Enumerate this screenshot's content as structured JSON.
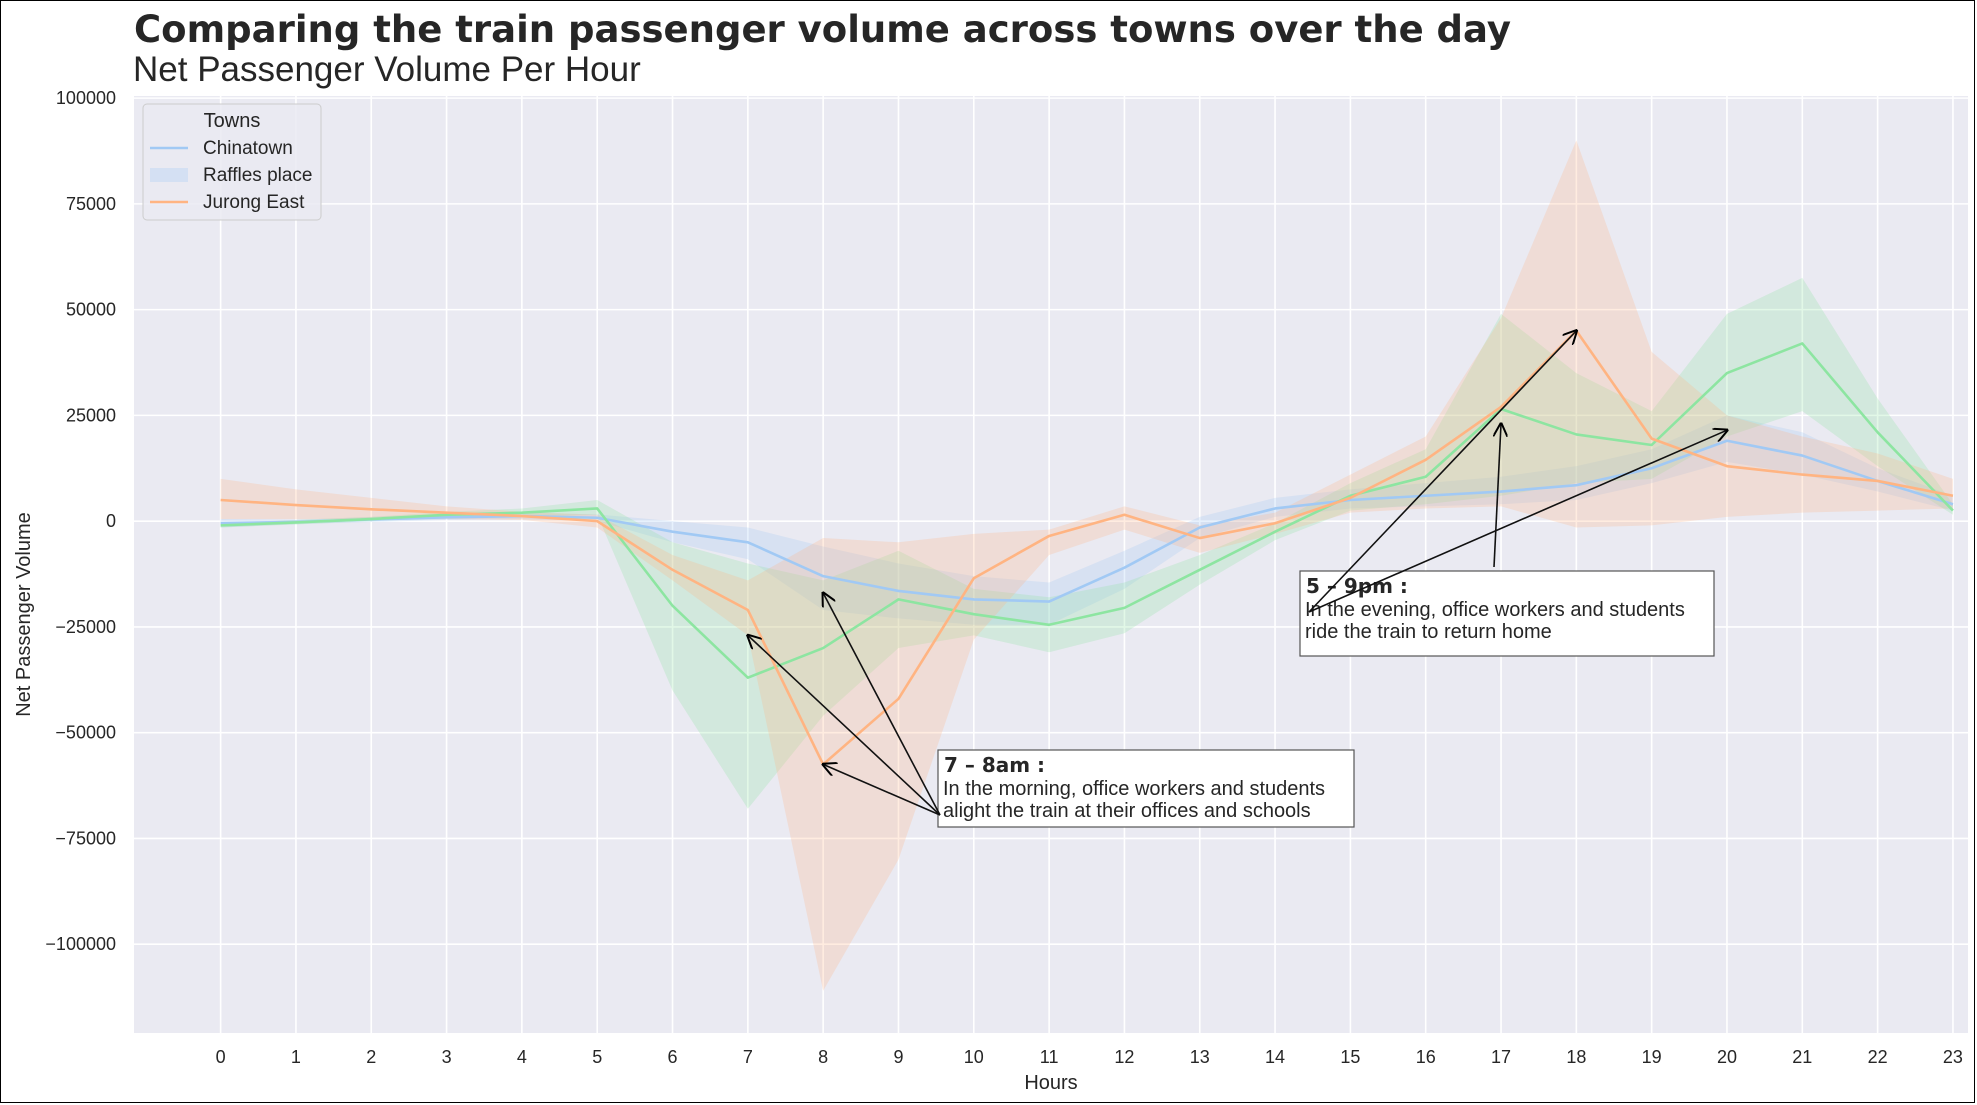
{
  "title": "Comparing the train passenger volume across towns over the day",
  "subtitle": "Net Passenger Volume Per Hour",
  "chart_data": {
    "type": "line",
    "xlabel": "Hours",
    "ylabel": "Net Passenger Volume",
    "x": [
      0,
      1,
      2,
      3,
      4,
      5,
      6,
      7,
      8,
      9,
      10,
      11,
      12,
      13,
      14,
      15,
      16,
      17,
      18,
      19,
      20,
      21,
      22,
      23
    ],
    "xlim": [
      -1.15,
      23.2
    ],
    "ylim": [
      -121000,
      100500
    ],
    "yticks": [
      100000,
      75000,
      50000,
      25000,
      0,
      -25000,
      -50000,
      -75000,
      -100000
    ],
    "ytick_labels": [
      "100000",
      "75000",
      "50000",
      "25000",
      "0",
      "−25000",
      "−50000",
      "−75000",
      "−100000"
    ],
    "grid": true,
    "legend": {
      "title": "Towns",
      "placement": "top-left",
      "entries": [
        {
          "label": "Chinatown",
          "kind": "line",
          "color": "#a1c9f4"
        },
        {
          "label": "Raffles place",
          "kind": "patch",
          "color": "#a1c9f4"
        },
        {
          "label": "Jurong East",
          "kind": "line",
          "color": "#ffb482"
        }
      ]
    },
    "series": [
      {
        "color": "#a1c9f4",
        "values": [
          -500,
          -200,
          400,
          900,
          1200,
          800,
          -2500,
          -5000,
          -13000,
          -16500,
          -18500,
          -19000,
          -11000,
          -1500,
          3000,
          5000,
          6000,
          7000,
          8500,
          12500,
          19000,
          15500,
          9500,
          4000
        ],
        "lower": [
          -1500,
          -700,
          -200,
          300,
          500,
          0,
          -5000,
          -9000,
          -21000,
          -23000,
          -24500,
          -24500,
          -16000,
          -4000,
          1000,
          3000,
          3500,
          4000,
          5000,
          9000,
          14000,
          11000,
          7000,
          2500
        ],
        "upper": [
          500,
          300,
          1000,
          1500,
          2000,
          1600,
          0,
          -1500,
          -6000,
          -10000,
          -13000,
          -14500,
          -7000,
          1000,
          5500,
          7500,
          9000,
          10500,
          13000,
          17000,
          25000,
          21000,
          12500,
          6000
        ]
      },
      {
        "color": "#8de5a1",
        "values": [
          -1000,
          -300,
          500,
          1500,
          2000,
          3000,
          -20000,
          -37000,
          -30000,
          -18500,
          -22000,
          -24500,
          -20500,
          -11500,
          -2500,
          6000,
          10500,
          26500,
          20500,
          18000,
          35000,
          42000,
          21000,
          2500
        ],
        "lower": [
          -1500,
          -800,
          0,
          700,
          1000,
          1500,
          -40000,
          -68000,
          -46000,
          -30000,
          -27000,
          -31000,
          -26500,
          -15000,
          -4500,
          2500,
          4000,
          6000,
          9000,
          10000,
          20000,
          26000,
          13000,
          1500
        ],
        "upper": [
          -500,
          300,
          1000,
          2200,
          3000,
          5000,
          -5000,
          -10000,
          -14000,
          -7000,
          -16000,
          -18000,
          -14500,
          -8000,
          -500,
          9000,
          17000,
          49000,
          35000,
          26000,
          49000,
          57500,
          29000,
          4000
        ]
      },
      {
        "color": "#ffb482",
        "values": [
          5000,
          3800,
          2800,
          2000,
          1200,
          0,
          -11500,
          -21000,
          -57500,
          -42000,
          -13500,
          -3500,
          1500,
          -4000,
          -500,
          5500,
          14500,
          27000,
          45000,
          19500,
          13000,
          11000,
          9500,
          6000
        ],
        "lower": [
          500,
          500,
          500,
          500,
          300,
          -1500,
          -14000,
          -27000,
          -111000,
          -80000,
          -28000,
          -8000,
          -2000,
          -7500,
          -3000,
          2000,
          3000,
          3500,
          -1500,
          -1000,
          1000,
          2000,
          2500,
          3000
        ],
        "upper": [
          10000,
          7500,
          5500,
          3500,
          2200,
          1500,
          -8000,
          -14000,
          -4000,
          -5000,
          -3000,
          -2000,
          3500,
          -1000,
          2000,
          11000,
          20000,
          48000,
          90000,
          40000,
          25000,
          20000,
          16000,
          10000
        ]
      }
    ],
    "annotations": [
      {
        "title": "7 – 8am :",
        "lines": [
          "In the morning, office workers and students",
          "alight the train at their offices and schools"
        ],
        "arrow_targets": [
          [
            7,
            -27000
          ],
          [
            8,
            -17000
          ],
          [
            8,
            -57500
          ]
        ]
      },
      {
        "title": "5 – 9pm :",
        "lines": [
          "In the evening, office workers and students",
          "ride the train to return home"
        ],
        "arrow_targets": [
          [
            17,
            23000
          ],
          [
            18,
            45000
          ],
          [
            20,
            21500
          ]
        ]
      }
    ]
  }
}
